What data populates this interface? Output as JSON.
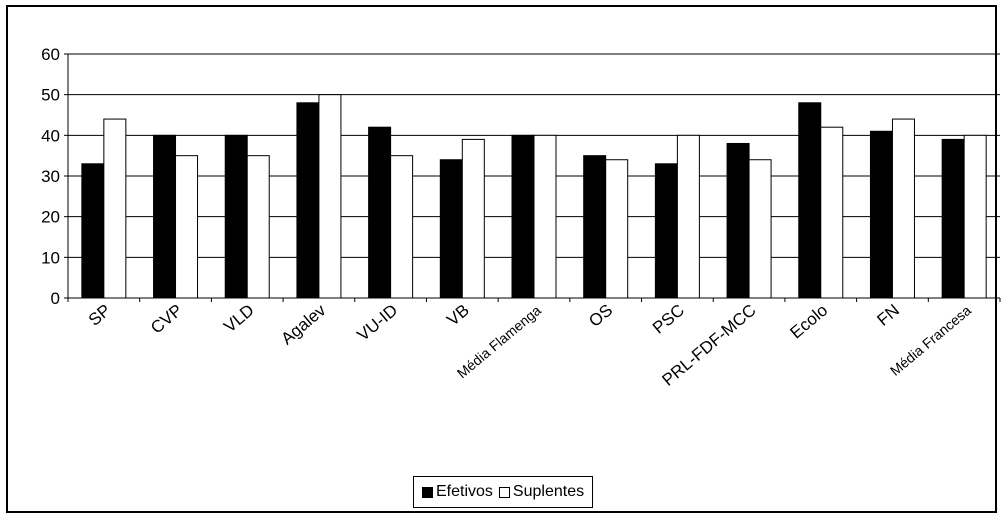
{
  "chart_data": {
    "type": "bar",
    "title": "",
    "xlabel": "",
    "ylabel": "",
    "ylim": [
      0,
      60
    ],
    "yticks": [
      0,
      10,
      20,
      30,
      40,
      50,
      60
    ],
    "grid": true,
    "legend_position": "bottom",
    "categories": [
      "SP",
      "CVP",
      "VLD",
      "Agalev",
      "VU-ID",
      "VB",
      "Média Flamenga",
      "OS",
      "PSC",
      "PRL-FDF-MCC",
      "Ecolo",
      "FN",
      "Média Francesa"
    ],
    "series": [
      {
        "name": "Efetivos",
        "color": "#000000",
        "values": [
          33,
          40,
          40,
          48,
          42,
          34,
          40,
          35,
          33,
          38,
          48,
          41,
          39
        ]
      },
      {
        "name": "Suplentes",
        "color": "#ffffff",
        "values": [
          44,
          35,
          35,
          50,
          35,
          39,
          40,
          34,
          40,
          34,
          42,
          44,
          40
        ]
      }
    ]
  }
}
